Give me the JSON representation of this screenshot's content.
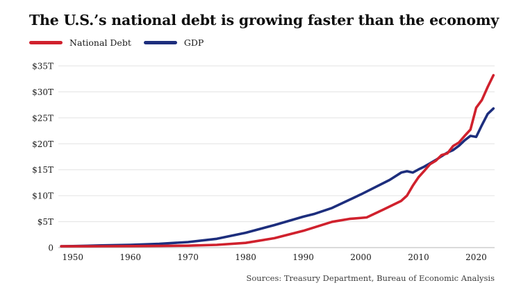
{
  "title": "The U.S.’s national debt is growing faster than the economy",
  "legend": [
    {
      "label": "National Debt",
      "color": "#d0212d"
    },
    {
      "label": "GDP",
      "color": "#1d2e7d"
    }
  ],
  "source": "Sources: Treasury Department, Bureau of Economic Analysis",
  "chart_data": {
    "type": "line",
    "title": "The U.S.’s national debt is growing faster than the economy",
    "xlabel": "",
    "ylabel": "",
    "xlim": [
      1947.5,
      2023.2
    ],
    "ylim": [
      0,
      35
    ],
    "grid": "horizontal",
    "legend_position": "top-left",
    "colors": {
      "grid": "#e3e3e3",
      "axis": "#b5b5b5",
      "tick_text": "#1a1a1a"
    },
    "x_ticks": [
      1950,
      1960,
      1970,
      1980,
      1990,
      2000,
      2010,
      2020
    ],
    "y_ticks": [
      {
        "label": "$35T",
        "value": 35
      },
      {
        "label": "$30T",
        "value": 30
      },
      {
        "label": "$25T",
        "value": 25
      },
      {
        "label": "$20T",
        "value": 20
      },
      {
        "label": "$15T",
        "value": 15
      },
      {
        "label": "$10T",
        "value": 10
      },
      {
        "label": "$5T",
        "value": 5
      },
      {
        "label": "0",
        "value": 0
      }
    ],
    "series": [
      {
        "name": "National Debt",
        "color": "#d0212d",
        "unit": "trillion USD",
        "x": [
          1948,
          1950,
          1955,
          1960,
          1965,
          1970,
          1975,
          1980,
          1985,
          1990,
          1995,
          1998,
          2001,
          2004,
          2007,
          2008,
          2009,
          2010,
          2011,
          2012,
          2013,
          2014,
          2015,
          2016,
          2017,
          2018,
          2019,
          2020,
          2021,
          2022,
          2023
        ],
        "y": [
          0.25,
          0.26,
          0.27,
          0.29,
          0.32,
          0.37,
          0.53,
          0.91,
          1.82,
          3.23,
          4.97,
          5.53,
          5.81,
          7.38,
          9.01,
          10.02,
          11.91,
          13.56,
          14.79,
          16.07,
          16.74,
          17.82,
          18.15,
          19.57,
          20.24,
          21.52,
          22.72,
          26.95,
          28.43,
          30.93,
          33.2
        ]
      },
      {
        "name": "GDP",
        "color": "#1d2e7d",
        "unit": "trillion USD",
        "x": [
          1948,
          1950,
          1955,
          1960,
          1965,
          1970,
          1975,
          1980,
          1985,
          1990,
          1992,
          1995,
          2000,
          2005,
          2007,
          2008,
          2009,
          2010,
          2011,
          2012,
          2013,
          2014,
          2015,
          2016,
          2017,
          2018,
          2019,
          2020,
          2021,
          2022,
          2023
        ],
        "y": [
          0.27,
          0.3,
          0.43,
          0.54,
          0.74,
          1.07,
          1.69,
          2.86,
          4.34,
          5.96,
          6.52,
          7.64,
          10.25,
          13.04,
          14.45,
          14.71,
          14.45,
          15.05,
          15.6,
          16.25,
          16.88,
          17.61,
          18.3,
          18.8,
          19.61,
          20.66,
          21.52,
          21.32,
          23.59,
          25.74,
          26.8
        ]
      }
    ]
  }
}
